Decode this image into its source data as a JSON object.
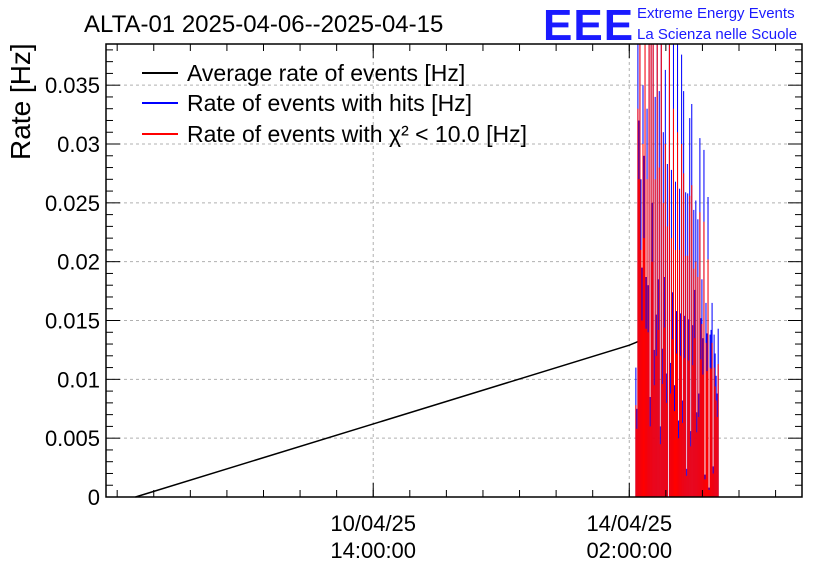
{
  "logo": {
    "text": "EEE",
    "line1": "Extreme Energy Events",
    "line2": "La Scienza nelle Scuole"
  },
  "colors": {
    "average": "#000000",
    "hits": "#0000ff",
    "chi2": "#ff0000",
    "logo": "#1a1aff"
  },
  "chart_data": {
    "type": "line",
    "title": "ALTA-01 2025-04-06--2025-04-15",
    "ylabel": "Rate [Hz]",
    "xlabel": "",
    "ylim": [
      0,
      0.0385
    ],
    "xlim": [
      "2025-04-06T22:20:00",
      "2025-04-16T10:40:00"
    ],
    "yticks": [
      {
        "v": 0,
        "label": "0"
      },
      {
        "v": 0.005,
        "label": "0.005"
      },
      {
        "v": 0.01,
        "label": "0.01"
      },
      {
        "v": 0.015,
        "label": "0.015"
      },
      {
        "v": 0.02,
        "label": "0.02"
      },
      {
        "v": 0.025,
        "label": "0.025"
      },
      {
        "v": 0.03,
        "label": "0.03"
      },
      {
        "v": 0.035,
        "label": "0.035"
      }
    ],
    "xticks": [
      {
        "t": "2025-04-10T14:00:00",
        "date": "10/04/25",
        "time": "14:00:00"
      },
      {
        "t": "2025-04-14T02:00:00",
        "date": "14/04/25",
        "time": "02:00:00"
      }
    ],
    "grid": true,
    "legend_position": "top-left",
    "series": [
      {
        "name": "Average rate of events [Hz]",
        "type": "line",
        "points": [
          [
            "2025-04-07T08:00:00",
            0
          ],
          [
            "2025-04-14T02:00:00",
            0.0129
          ],
          [
            "2025-04-14T06:40:00",
            0.0134
          ]
        ]
      },
      {
        "name": "Rate of events with hits [Hz]",
        "type": "bars",
        "start": "2025-04-14T04:00:00",
        "step_minutes": 20,
        "values": [
          0.011,
          0.0075,
          0.0385,
          0.032,
          0.0385,
          0.027,
          0.0195,
          0.035,
          0.029,
          0.0385,
          0.0187,
          0.033,
          0.018,
          0.0385,
          0.0085,
          0.0385,
          0.025,
          0.0385,
          0.0125,
          0.034,
          0.0155,
          0.0385,
          0.0185,
          0.0345,
          0.006,
          0.0385,
          0.0126,
          0.031,
          0.0187,
          0.0363,
          0.0105,
          0.0283,
          0.0,
          0.0385,
          0.0114,
          0.0278,
          0.0174,
          0.0385,
          0.0095,
          0.0268,
          0.0158,
          0.0385,
          0.0065,
          0.0262,
          0.0156,
          0.0376,
          0.0082,
          0.0345,
          0.0154,
          0.0259,
          0.0024,
          0.0258,
          0.0151,
          0.0322,
          0.0056,
          0.0334,
          0.0146,
          0.0244,
          0.0176,
          0.0252,
          0.0072,
          0.0236,
          0.0088,
          0.0305,
          0.0152,
          0.0185,
          0.0135,
          0.0295,
          0.0019,
          0.0165,
          0.0139,
          0.0255,
          0.0008,
          0.0138,
          0.0142,
          0.0165,
          0.0026,
          0.0138,
          0.0122,
          0.0103,
          0.0088,
          0.0143
        ]
      },
      {
        "name": "Rate of events with χ² < 10.0 [Hz]",
        "type": "bars",
        "start": "2025-04-14T04:00:00",
        "step_minutes": 20,
        "values": [
          0.0078,
          0.0058,
          0.033,
          0.027,
          0.0385,
          0.021,
          0.015,
          0.03,
          0.022,
          0.0385,
          0.0143,
          0.027,
          0.014,
          0.0385,
          0.006,
          0.0385,
          0.02,
          0.0385,
          0.0095,
          0.027,
          0.012,
          0.0385,
          0.0142,
          0.028,
          0.0045,
          0.0385,
          0.0096,
          0.025,
          0.0144,
          0.03,
          0.008,
          0.023,
          0.0,
          0.0385,
          0.0088,
          0.022,
          0.0134,
          0.033,
          0.0073,
          0.021,
          0.0122,
          0.031,
          0.005,
          0.021,
          0.012,
          0.03,
          0.0063,
          0.0275,
          0.0118,
          0.0205,
          0.0018,
          0.0205,
          0.0116,
          0.0256,
          0.0043,
          0.0265,
          0.0112,
          0.0194,
          0.0135,
          0.02,
          0.0055,
          0.0187,
          0.0068,
          0.0242,
          0.0117,
          0.0147,
          0.0104,
          0.0234,
          0.0015,
          0.0131,
          0.0107,
          0.0202,
          0.0006,
          0.011,
          0.0109,
          0.0131,
          0.002,
          0.011,
          0.0094,
          0.0082,
          0.0068,
          0.0113
        ]
      }
    ]
  }
}
